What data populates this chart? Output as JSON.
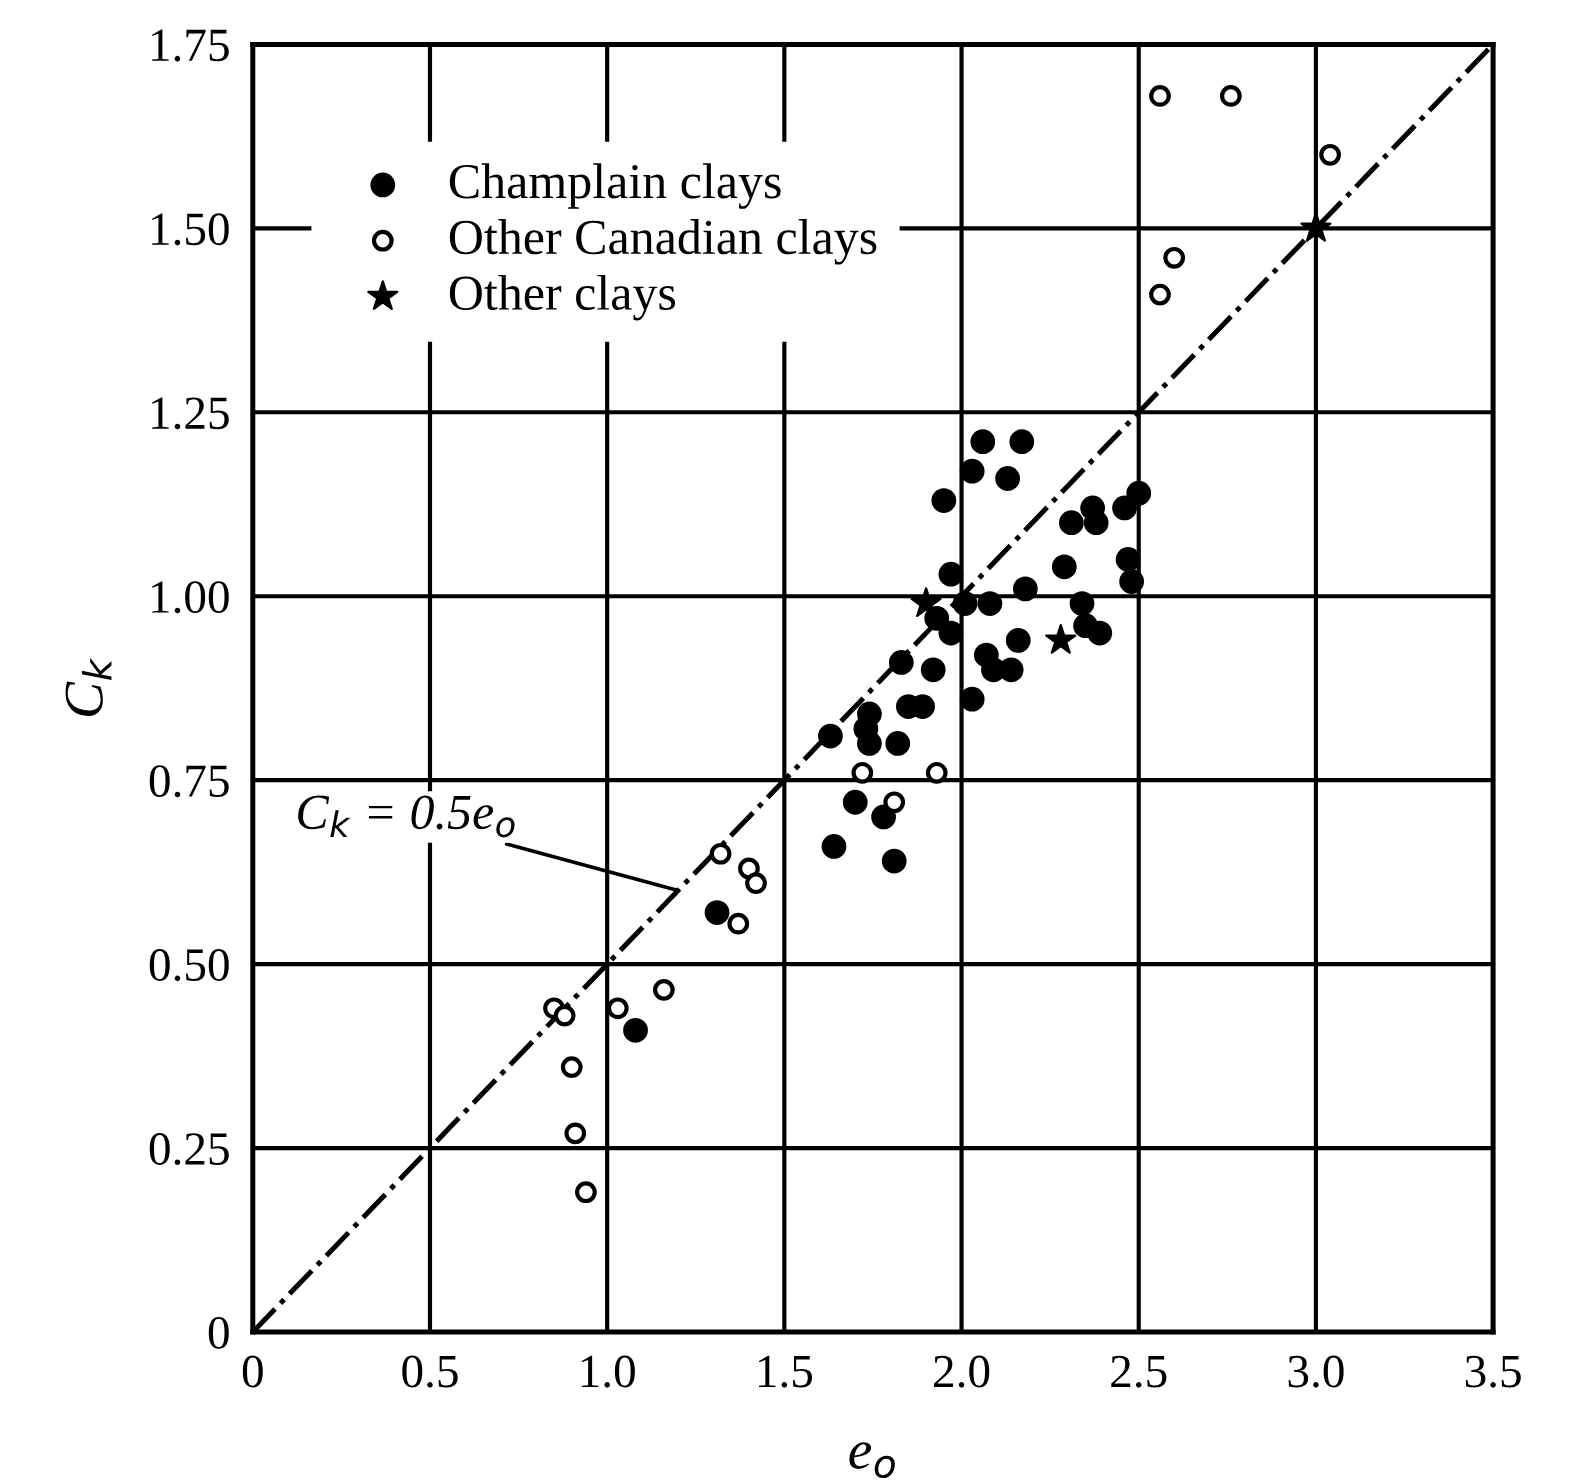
{
  "chart_data": {
    "type": "scatter",
    "xlabel": "e$_{o}$",
    "ylabel": "C$_{k}$",
    "xlim": [
      0,
      3.5
    ],
    "ylim": [
      0,
      1.75
    ],
    "xticks": [
      0,
      0.5,
      {
        "value": 1,
        "label": "1.0"
      },
      1.5,
      {
        "value": 2,
        "label": "2.0"
      },
      2.5,
      {
        "value": 3,
        "label": "3.0"
      },
      3.5
    ],
    "yticks": [
      0,
      0.25,
      {
        "value": 0.5,
        "label": "0.50"
      },
      0.75,
      {
        "value": 1,
        "label": "1.00"
      },
      1.25,
      {
        "value": 1.5,
        "label": "1.50"
      },
      1.75
    ],
    "grid": true,
    "legend": "top left",
    "annotations": [
      {
        "text": "C$_{k}$ = 0.5e$_{o}$",
        "x": 1.2,
        "y": 0.6
      }
    ],
    "series": [
      {
        "name": "Champlain clays",
        "color": "#000000",
        "marker": "circle",
        "x": [
          1.31,
          1.08,
          2.06,
          2.17,
          2.03,
          2.13,
          1.95,
          2.37,
          2.5,
          2.46,
          2.31,
          2.38,
          2.47,
          2.48,
          2.29,
          1.97,
          2.18,
          2.01,
          2.08,
          2.34,
          1.97,
          2.35,
          2.39,
          2.16,
          2.07,
          2.09,
          2.14,
          1.92,
          1.83,
          2.03,
          1.85,
          1.89,
          1.74,
          1.73,
          1.74,
          1.82,
          1.63,
          1.7,
          1.78,
          1.64,
          1.81,
          1.93
        ],
        "values": [
          0.57,
          0.41,
          1.21,
          1.21,
          1.17,
          1.16,
          1.13,
          1.12,
          1.14,
          1.12,
          1.1,
          1.1,
          1.05,
          1.02,
          1.04,
          1.03,
          1.01,
          0.99,
          0.99,
          0.99,
          0.95,
          0.96,
          0.95,
          0.94,
          0.92,
          0.9,
          0.9,
          0.9,
          0.91,
          0.86,
          0.85,
          0.85,
          0.84,
          0.82,
          0.8,
          0.8,
          0.81,
          0.72,
          0.7,
          0.66,
          0.64,
          0.97
        ]
      },
      {
        "name": "Other Canadian clays",
        "color": "#000000",
        "marker": "open circle",
        "x": [
          2.56,
          2.76,
          3.04,
          2.6,
          2.56,
          1.32,
          1.4,
          1.42,
          1.37,
          0.85,
          0.88,
          1.03,
          1.16,
          0.9,
          0.91,
          0.94,
          1.72,
          1.93,
          1.81
        ],
        "values": [
          1.68,
          1.68,
          1.6,
          1.46,
          1.41,
          0.65,
          0.63,
          0.61,
          0.555,
          0.44,
          0.43,
          0.44,
          0.465,
          0.36,
          0.27,
          0.19,
          0.76,
          0.76,
          0.72
        ]
      },
      {
        "name": "Other clays",
        "color": "#000000",
        "marker": "star",
        "x": [
          3.0,
          1.9,
          2.28
        ],
        "values": [
          1.5,
          0.99,
          0.94
        ]
      },
      {
        "type": "line",
        "color": "#000000",
        "line_style": "dashed",
        "marker": "none",
        "x": [
          0,
          3.5
        ],
        "values": [
          0,
          1.75
        ]
      }
    ]
  }
}
